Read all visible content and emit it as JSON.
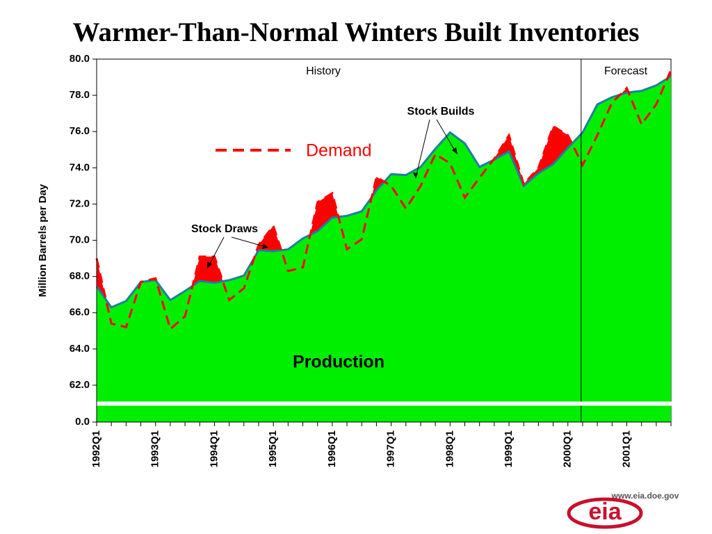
{
  "chart_data": {
    "type": "area-line",
    "title": "Warmer-Than-Normal Winters Built Inventories",
    "y_label": "Million Barrels per Day",
    "categories": [
      "1992Q1",
      null,
      null,
      null,
      "1993Q1",
      null,
      null,
      null,
      "1994Q1",
      null,
      null,
      null,
      "1995Q1",
      null,
      null,
      null,
      "1996Q1",
      null,
      null,
      null,
      "1997Q1",
      null,
      null,
      null,
      "1998Q1",
      null,
      null,
      null,
      "1999Q1",
      null,
      null,
      null,
      "2000Q1",
      null,
      null,
      null,
      "2001Q1",
      null,
      null,
      null
    ],
    "series": [
      {
        "name": "Production",
        "color": "#00ee00",
        "line_color": "#1f7f9f",
        "values": [
          67.45,
          66.3,
          66.65,
          67.7,
          67.8,
          66.7,
          67.2,
          67.75,
          67.65,
          67.8,
          68.05,
          69.45,
          69.4,
          69.5,
          70.1,
          70.5,
          71.25,
          71.35,
          71.6,
          72.75,
          73.65,
          73.6,
          74.05,
          75.05,
          75.95,
          75.35,
          74.05,
          74.45,
          74.9,
          73.0,
          73.7,
          74.2,
          75.1,
          75.95,
          77.5,
          77.9,
          78.15,
          78.25,
          78.55,
          79.05
        ]
      },
      {
        "name": "Demand",
        "color": "#ff0000",
        "values": [
          69.0,
          65.4,
          65.2,
          67.7,
          67.9,
          65.1,
          65.8,
          69.1,
          69.1,
          66.7,
          67.35,
          69.75,
          70.8,
          68.3,
          68.5,
          72.1,
          72.6,
          69.5,
          70.05,
          73.5,
          73.0,
          71.75,
          73.0,
          74.75,
          74.25,
          72.35,
          73.45,
          74.5,
          75.8,
          73.1,
          74.0,
          76.3,
          75.8,
          74.15,
          75.8,
          77.6,
          78.4,
          76.4,
          77.5,
          79.4
        ]
      }
    ],
    "ylim": [
      0,
      80
    ],
    "axis_break": [
      0,
      62
    ],
    "yticks": [
      {
        "value": 0,
        "label": "0.0"
      },
      {
        "value": 62,
        "label": "62.0"
      },
      {
        "value": 64,
        "label": "64.0"
      },
      {
        "value": 66,
        "label": "66.0"
      },
      {
        "value": 68,
        "label": "68.0"
      },
      {
        "value": 70,
        "label": "70.0"
      },
      {
        "value": 72,
        "label": "72.0"
      },
      {
        "value": 74,
        "label": "74.0"
      },
      {
        "value": 76,
        "label": "76.0"
      },
      {
        "value": 78,
        "label": "78.0"
      },
      {
        "value": 80,
        "label": "80.0"
      }
    ],
    "forecast_start_index": 33,
    "annotations": {
      "history": "History",
      "forecast": "Forecast",
      "stock_builds": "Stock Builds",
      "stock_draws": "Stock Draws",
      "production": "Production"
    }
  },
  "logo": {
    "url": "www.eia.doe.gov",
    "text": "eia"
  }
}
